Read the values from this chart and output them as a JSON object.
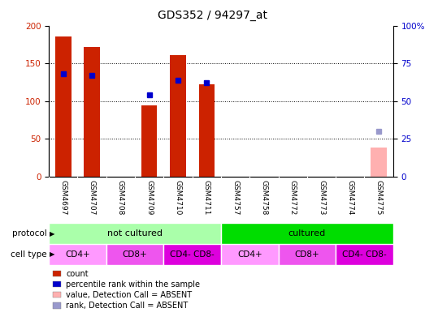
{
  "title": "GDS352 / 94297_at",
  "samples": [
    "GSM4697",
    "GSM4707",
    "GSM4708",
    "GSM4709",
    "GSM4710",
    "GSM4711",
    "GSM4757",
    "GSM4758",
    "GSM4772",
    "GSM4773",
    "GSM4774",
    "GSM4775"
  ],
  "count_values": [
    186,
    172,
    null,
    94,
    161,
    122,
    null,
    null,
    null,
    null,
    null,
    null
  ],
  "count_absent": [
    null,
    null,
    null,
    null,
    null,
    null,
    null,
    null,
    null,
    null,
    null,
    38
  ],
  "rank_values": [
    68,
    67,
    null,
    54,
    64,
    62,
    null,
    null,
    null,
    null,
    null,
    null
  ],
  "rank_absent": [
    null,
    null,
    null,
    null,
    null,
    null,
    null,
    null,
    null,
    null,
    null,
    30
  ],
  "ylim_left": [
    0,
    200
  ],
  "ylim_right": [
    0,
    100
  ],
  "yticks_left": [
    0,
    50,
    100,
    150,
    200
  ],
  "yticks_right": [
    0,
    25,
    50,
    75,
    100
  ],
  "yticklabels_right": [
    "0",
    "25",
    "50",
    "75",
    "100%"
  ],
  "bar_color": "#cc2200",
  "bar_absent_color": "#ffb0b0",
  "rank_color": "#0000cc",
  "rank_absent_color": "#9999cc",
  "protocol_groups": [
    {
      "label": "not cultured",
      "start": 0,
      "end": 6,
      "color": "#aaffaa"
    },
    {
      "label": "cultured",
      "start": 6,
      "end": 12,
      "color": "#00dd00"
    }
  ],
  "cell_type_groups": [
    {
      "label": "CD4+",
      "start": 0,
      "end": 2,
      "color": "#ff99ff"
    },
    {
      "label": "CD8+",
      "start": 2,
      "end": 4,
      "color": "#ee55ee"
    },
    {
      "label": "CD4- CD8-",
      "start": 4,
      "end": 6,
      "color": "#dd00dd"
    },
    {
      "label": "CD4+",
      "start": 6,
      "end": 8,
      "color": "#ff99ff"
    },
    {
      "label": "CD8+",
      "start": 8,
      "end": 10,
      "color": "#ee55ee"
    },
    {
      "label": "CD4- CD8-",
      "start": 10,
      "end": 12,
      "color": "#dd00dd"
    }
  ],
  "legend_items": [
    {
      "label": "count",
      "color": "#cc2200"
    },
    {
      "label": "percentile rank within the sample",
      "color": "#0000cc"
    },
    {
      "label": "value, Detection Call = ABSENT",
      "color": "#ffb0b0"
    },
    {
      "label": "rank, Detection Call = ABSENT",
      "color": "#9999cc"
    }
  ],
  "sample_bg_color": "#c8c8c8",
  "background_color": "#ffffff"
}
